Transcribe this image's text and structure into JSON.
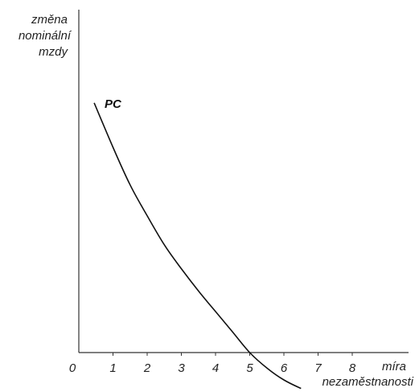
{
  "chart_data": {
    "type": "line",
    "ylabel_lines": [
      "změna",
      "nominální",
      "mzdy"
    ],
    "xlabel_lines": [
      "míra",
      "nezaměstnanosti"
    ],
    "origin_label": "0",
    "x_ticks": [
      "1",
      "2",
      "3",
      "4",
      "5",
      "6",
      "7",
      "8"
    ],
    "xlim": [
      0,
      9
    ],
    "series": [
      {
        "name": "PC",
        "x": [
          0.45,
          1.0,
          1.5,
          2.0,
          2.5,
          3.0,
          3.5,
          4.0,
          4.5,
          5.0,
          5.5,
          6.0,
          6.5
        ],
        "y": [
          7.3,
          6.0,
          4.9,
          4.0,
          3.15,
          2.45,
          1.8,
          1.2,
          0.6,
          0.0,
          -0.45,
          -0.8,
          -1.05
        ]
      }
    ],
    "ylim": [
      -1.2,
      10
    ]
  },
  "style": {
    "axis_color": "#333333",
    "curve_color": "#111111"
  }
}
